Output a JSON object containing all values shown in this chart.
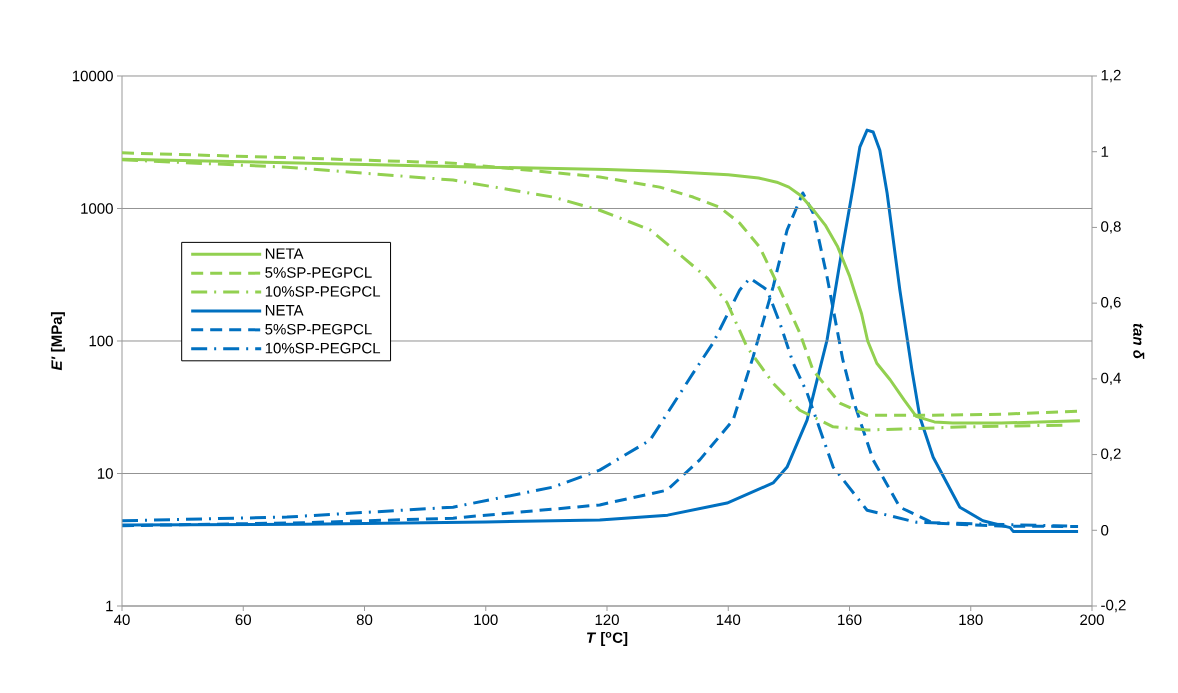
{
  "chart_data": {
    "type": "line",
    "xlabel": "*T* [$^{o}$C]",
    "ylabel": "*E'* [MPa]",
    "y2label": "tan δ",
    "xlim": [
      40,
      200
    ],
    "xticks": [
      40,
      60,
      80,
      100,
      120,
      140,
      160,
      180,
      200
    ],
    "ylim": [
      1,
      10000
    ],
    "yticks": [
      1,
      10,
      100,
      1000,
      10000
    ],
    "log": "y",
    "y2lim": [
      -0.2,
      1.2
    ],
    "y2ticks": [
      {
        "value": -0.2,
        "label": "-0,2"
      },
      {
        "value": 0,
        "label": "0"
      },
      {
        "value": 0.2,
        "label": "0,2"
      },
      {
        "value": 0.4,
        "label": "0,4"
      },
      {
        "value": 0.6,
        "label": "0,6"
      },
      {
        "value": 0.8,
        "label": "0,8"
      },
      {
        "value": 1,
        "label": "1"
      },
      {
        "value": 1.2,
        "label": "1,2"
      }
    ],
    "grid": "y",
    "legend": "left",
    "marker": "none",
    "series": [
      {
        "name": "NETA",
        "color": "#92d050",
        "line_style": "solid",
        "x": [
          40,
          60,
          80,
          100,
          120,
          130,
          140,
          145,
          148,
          150,
          152,
          154,
          156,
          158,
          160,
          162,
          163,
          164.5,
          166.7,
          169,
          171,
          174,
          177,
          185,
          198
        ],
        "values": [
          2350,
          2250,
          2150,
          2050,
          1970,
          1900,
          1800,
          1700,
          1580,
          1450,
          1250,
          980,
          750,
          520,
          310,
          160,
          100,
          68,
          51,
          36,
          27,
          24.5,
          24,
          24,
          25
        ]
      },
      {
        "name": "5%SP-PEGPCL",
        "color": "#92d050",
        "line_style": "dashed",
        "x": [
          40,
          70,
          94.6,
          118.8,
          128.7,
          134.2,
          138.6,
          141.9,
          145.2,
          148,
          151.8,
          154,
          158.4,
          162.9,
          173.8,
          185,
          198
        ],
        "values": [
          2630,
          2400,
          2200,
          1730,
          1450,
          1220,
          1020,
          775,
          510,
          275,
          115,
          60,
          34,
          27.5,
          27.5,
          28,
          29.5
        ]
      },
      {
        "name": "10%SP-PEGPCL",
        "color": "#92d050",
        "line_style": "dashdot",
        "x": [
          40,
          67.2,
          94.6,
          111.1,
          118.8,
          127.1,
          132.5,
          136.5,
          139.8,
          143.1,
          147.4,
          151.8,
          157.3,
          162.9,
          170,
          179.4,
          195.9
        ],
        "values": [
          2330,
          2050,
          1640,
          1220,
          970,
          690,
          430,
          300,
          195,
          90,
          48,
          30,
          22.5,
          21.3,
          21.8,
          22.5,
          23.2
        ]
      },
      {
        "name": "NETA",
        "color": "#0070c0",
        "line_style": "solid",
        "axis": "y2",
        "x": [
          40,
          70,
          100,
          118.8,
          130,
          139.8,
          147.4,
          149.7,
          153,
          156.3,
          158.4,
          160.6,
          161.7,
          162.9,
          163.9,
          165,
          166.2,
          168.3,
          170.3,
          171.6,
          173.8,
          178.2,
          182,
          186.5,
          187,
          197.7
        ],
        "values": [
          0.014,
          0.016,
          0.022,
          0.027,
          0.04,
          0.072,
          0.125,
          0.167,
          0.291,
          0.503,
          0.706,
          0.907,
          1.012,
          1.057,
          1.052,
          1.004,
          0.891,
          0.635,
          0.423,
          0.299,
          0.193,
          0.061,
          0.025,
          0.007,
          -0.003,
          -0.003
        ]
      },
      {
        "name": "5%SP-PEGPCL",
        "color": "#0070c0",
        "line_style": "dashed",
        "axis": "y2",
        "x": [
          40,
          70,
          94.6,
          118.8,
          129.9,
          135.3,
          140.8,
          144.1,
          147.4,
          149.7,
          152.3,
          154,
          156.3,
          158.9,
          160.6,
          163.9,
          168.3,
          173.8,
          184.8,
          197.7
        ],
        "values": [
          0.012,
          0.02,
          0.032,
          0.067,
          0.106,
          0.186,
          0.291,
          0.458,
          0.643,
          0.793,
          0.891,
          0.838,
          0.669,
          0.45,
          0.344,
          0.186,
          0.061,
          0.019,
          0.011,
          0.01
        ]
      },
      {
        "name": "10%SP-PEGPCL",
        "color": "#0070c0",
        "line_style": "dashdot",
        "axis": "y2",
        "x": [
          40,
          67.2,
          94.6,
          111.1,
          118.8,
          127.1,
          134.2,
          137.5,
          141.9,
          143.6,
          146.4,
          148.5,
          150.7,
          153,
          157.3,
          162.9,
          171.1,
          195.9
        ],
        "values": [
          0.025,
          0.035,
          0.061,
          0.114,
          0.159,
          0.238,
          0.415,
          0.495,
          0.635,
          0.666,
          0.635,
          0.548,
          0.442,
          0.363,
          0.167,
          0.053,
          0.021,
          0.011
        ]
      }
    ]
  }
}
